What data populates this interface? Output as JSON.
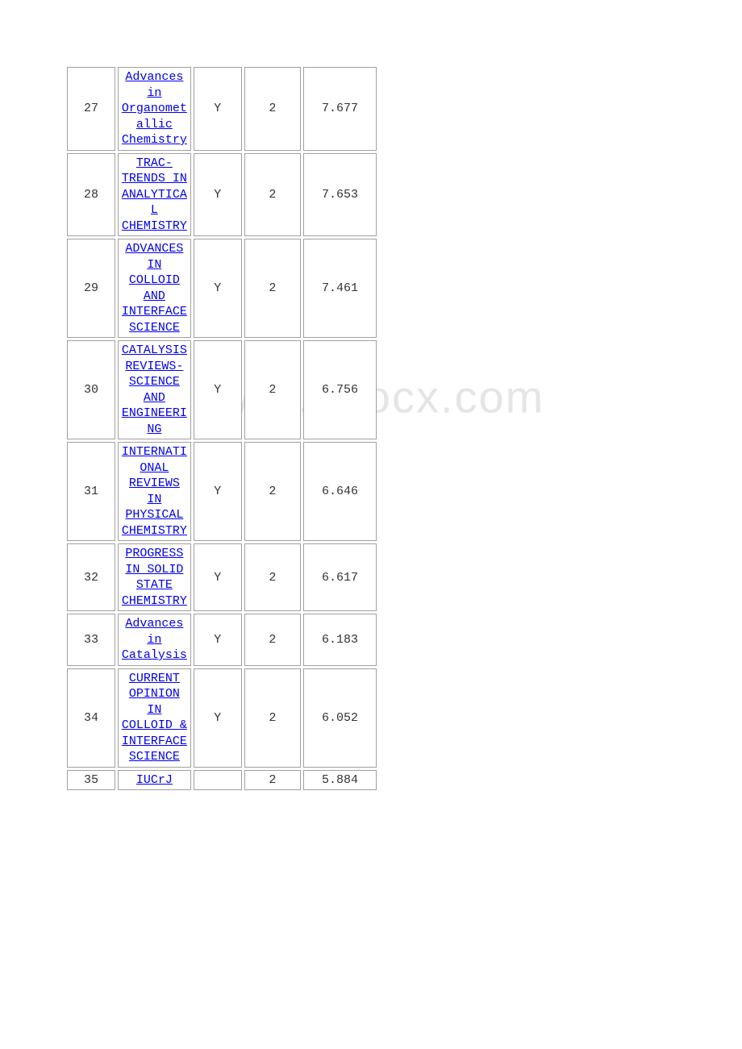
{
  "watermark": "www.bdocx.com",
  "table": {
    "columns": {
      "rank_width": 58,
      "title_width": 88,
      "y_width": 58,
      "quart_width": 68,
      "score_width": 88
    },
    "colors": {
      "border": "#a0a0a0",
      "link": "#0000ee",
      "text": "#333333",
      "background": "#ffffff",
      "watermark": "#e5e5e5"
    },
    "rows": [
      {
        "rank": "27",
        "title": "Advances in Organometallic Chemistry",
        "review": "Y",
        "quartile": "2",
        "score": "7.677"
      },
      {
        "rank": "28",
        "title": "TRAC-TRENDS IN ANALYTICAL CHEMISTRY",
        "review": "Y",
        "quartile": "2",
        "score": "7.653"
      },
      {
        "rank": "29",
        "title": "ADVANCES IN COLLOID AND INTERFACE SCIENCE",
        "review": "Y",
        "quartile": "2",
        "score": "7.461"
      },
      {
        "rank": "30",
        "title": "CATALYSIS REVIEWS-SCIENCE AND ENGINEERING",
        "review": "Y",
        "quartile": "2",
        "score": "6.756"
      },
      {
        "rank": "31",
        "title": "INTERNATIONAL REVIEWS IN PHYSICAL CHEMISTRY",
        "review": "Y",
        "quartile": "2",
        "score": "6.646"
      },
      {
        "rank": "32",
        "title": "PROGRESS IN SOLID STATE CHEMISTRY",
        "review": "Y",
        "quartile": "2",
        "score": "6.617"
      },
      {
        "rank": "33",
        "title": "Advances in Catalysis",
        "review": "Y",
        "quartile": "2",
        "score": "6.183"
      },
      {
        "rank": "34",
        "title": "CURRENT OPINION IN COLLOID & INTERFACE SCIENCE",
        "review": "Y",
        "quartile": "2",
        "score": "6.052"
      },
      {
        "rank": "35",
        "title": "IUCrJ",
        "review": "",
        "quartile": "2",
        "score": "5.884"
      }
    ]
  }
}
